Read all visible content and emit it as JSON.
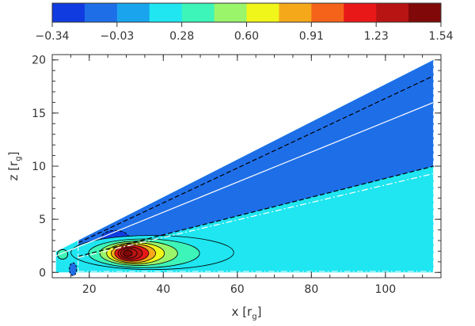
{
  "chart_data": {
    "type": "contour",
    "xlabel_main": "x [r",
    "xlabel_sub": "g",
    "xlabel_end": "]",
    "ylabel_main": "z [r",
    "ylabel_sub": "g",
    "ylabel_end": "]",
    "xlim": [
      10,
      115
    ],
    "ylim": [
      -0.5,
      20.5
    ],
    "x_ticks": [
      20,
      40,
      60,
      80,
      100
    ],
    "y_ticks": [
      0,
      5,
      10,
      15,
      20
    ],
    "colorbar": {
      "colors": [
        "#0f3be0",
        "#1e6ee8",
        "#1aa4ee",
        "#1fe6f0",
        "#3df5b8",
        "#9af56a",
        "#f0f51a",
        "#f5a81a",
        "#f5621a",
        "#e81818",
        "#b81414",
        "#800808"
      ],
      "labels": [
        "−0.34",
        "−0.03",
        "0.28",
        "0.60",
        "0.91",
        "1.23",
        "1.54"
      ],
      "range": [
        -0.34,
        1.54
      ]
    },
    "regions": {
      "background_color": "#1fe6f0",
      "upper_wedge_color": "#1e6ee8",
      "blob_low_color": "#0f3be0",
      "blob_mid_color": "#3df5b8",
      "contour_line_color": "#000000",
      "center_line_color": "#ffffff"
    },
    "domain": {
      "inner_x": 11,
      "outer_x": 113,
      "top_z_at_outer": 20,
      "upper_dashed_z_at_outer": 18.5,
      "center_line_z_at_outer": 16,
      "lower_dashed_z_at_outer": 10,
      "dotdash_z_at_outer": 9.3,
      "dashed_start_x": 17
    },
    "hotspot": {
      "x": 30,
      "z": 1.8,
      "levels": [
        {
          "value": 0.28,
          "rx": 22,
          "rz": 1.6
        },
        {
          "value": 0.44,
          "rx": 15,
          "rz": 1.35
        },
        {
          "value": 0.6,
          "rx": 10.5,
          "rz": 1.15
        },
        {
          "value": 0.75,
          "rx": 7.8,
          "rz": 1.0
        },
        {
          "value": 0.91,
          "rx": 6,
          "rz": 0.88
        },
        {
          "value": 1.07,
          "rx": 4.6,
          "rz": 0.74
        },
        {
          "value": 1.23,
          "rx": 3.3,
          "rz": 0.6
        },
        {
          "value": 1.38,
          "rx": 2.2,
          "rz": 0.45
        },
        {
          "value": 1.54,
          "rx": 1.2,
          "rz": 0.3
        }
      ]
    },
    "features": {
      "low_blob": {
        "x": 27,
        "z": 3.2,
        "rx": 3.8,
        "rz": 0.75,
        "value": -0.34
      },
      "small_dark_blob": {
        "x": 15.6,
        "z": 0.3,
        "rx": 1.0,
        "rz": 0.6,
        "value": -0.34
      },
      "small_green_blob": {
        "x": 12.8,
        "z": 1.7,
        "rx": 1.4,
        "rz": 0.45,
        "value": 0.28
      }
    }
  }
}
